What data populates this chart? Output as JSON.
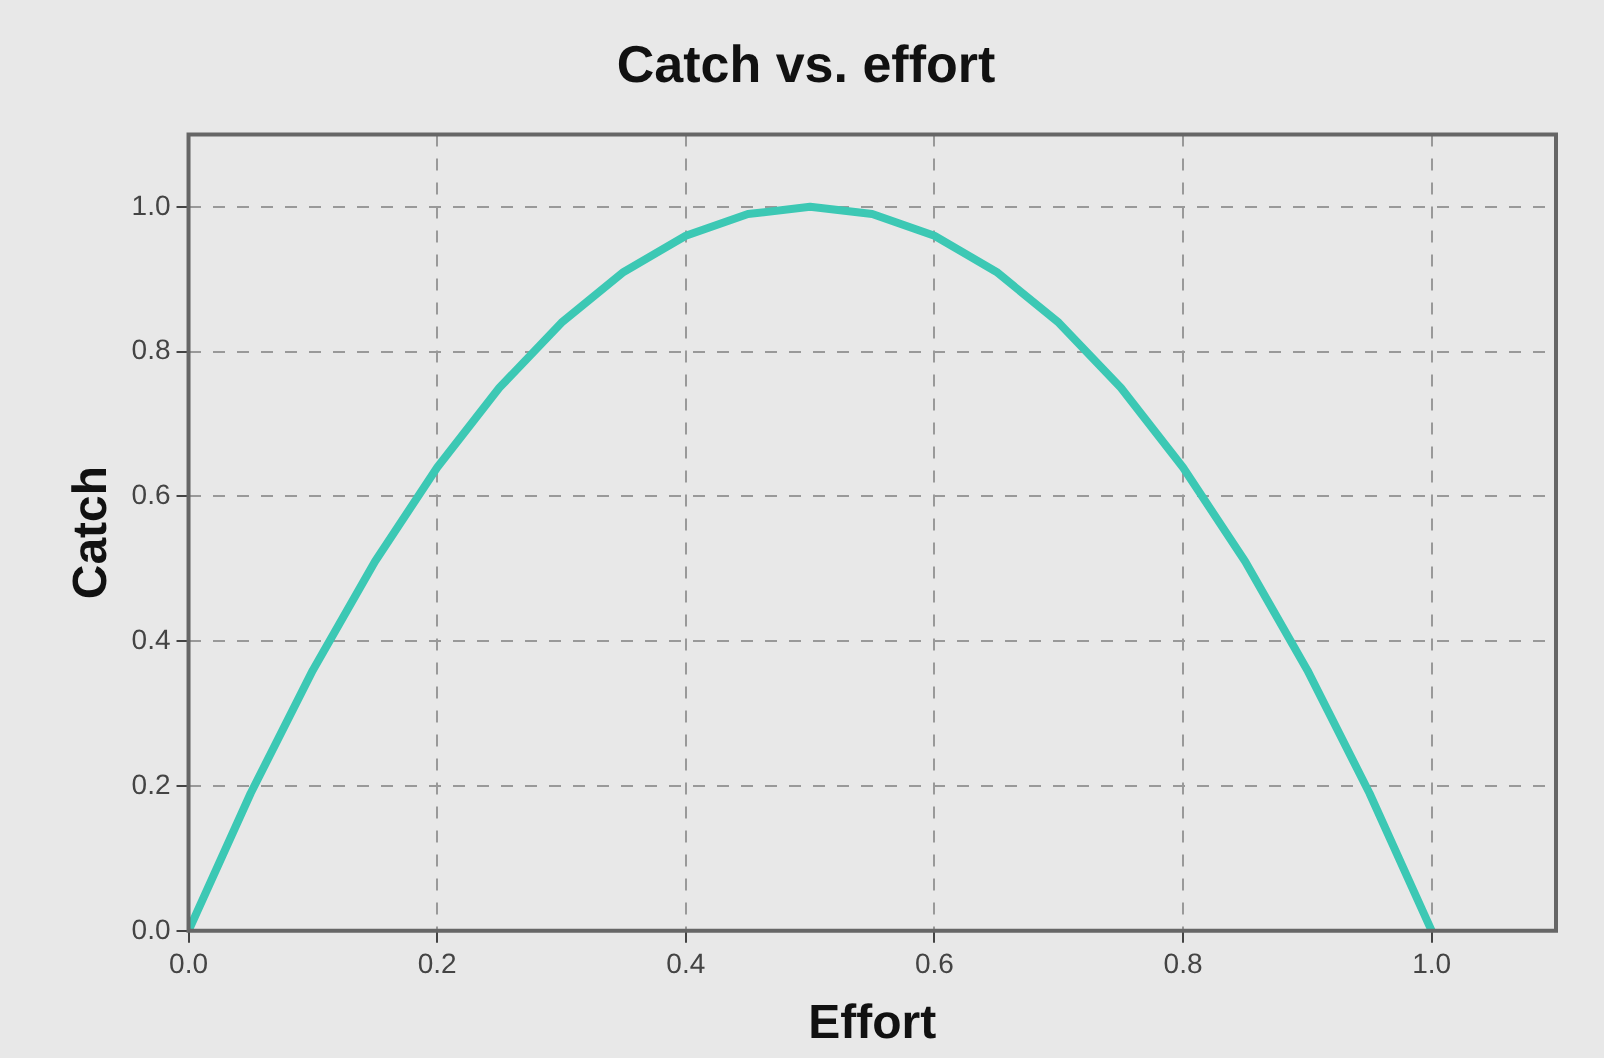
{
  "chart_data": {
    "type": "line",
    "title": "Catch vs. effort",
    "xlabel": "Effort",
    "ylabel": "Catch",
    "x": [
      0,
      0.05,
      0.1,
      0.15,
      0.2,
      0.25,
      0.3,
      0.35,
      0.4,
      0.45,
      0.5,
      0.55,
      0.6,
      0.65,
      0.7,
      0.75,
      0.8,
      0.85,
      0.9,
      0.95,
      1
    ],
    "series": [
      {
        "color": "#3cc8b4",
        "values": [
          0,
          0.19,
          0.36,
          0.51,
          0.64,
          0.75,
          0.84,
          0.91,
          0.96,
          0.99,
          1,
          0.99,
          0.96,
          0.91,
          0.84,
          0.75,
          0.64,
          0.51,
          0.36,
          0.19,
          0
        ]
      }
    ],
    "xlim": [
      0,
      1.1
    ],
    "xticks": [
      {
        "value": 0,
        "label": "0.0"
      },
      0.2,
      0.4,
      0.6,
      0.8,
      {
        "value": 1,
        "label": "1.0"
      }
    ],
    "ylim": [
      0,
      1.1
    ],
    "yticks": [
      {
        "value": 0,
        "label": "0.0"
      },
      0.2,
      0.4,
      0.6,
      0.8,
      {
        "value": 1,
        "label": "1.0"
      }
    ],
    "grid": true,
    "legend": false,
    "marker": "none",
    "line_style": "solid"
  }
}
